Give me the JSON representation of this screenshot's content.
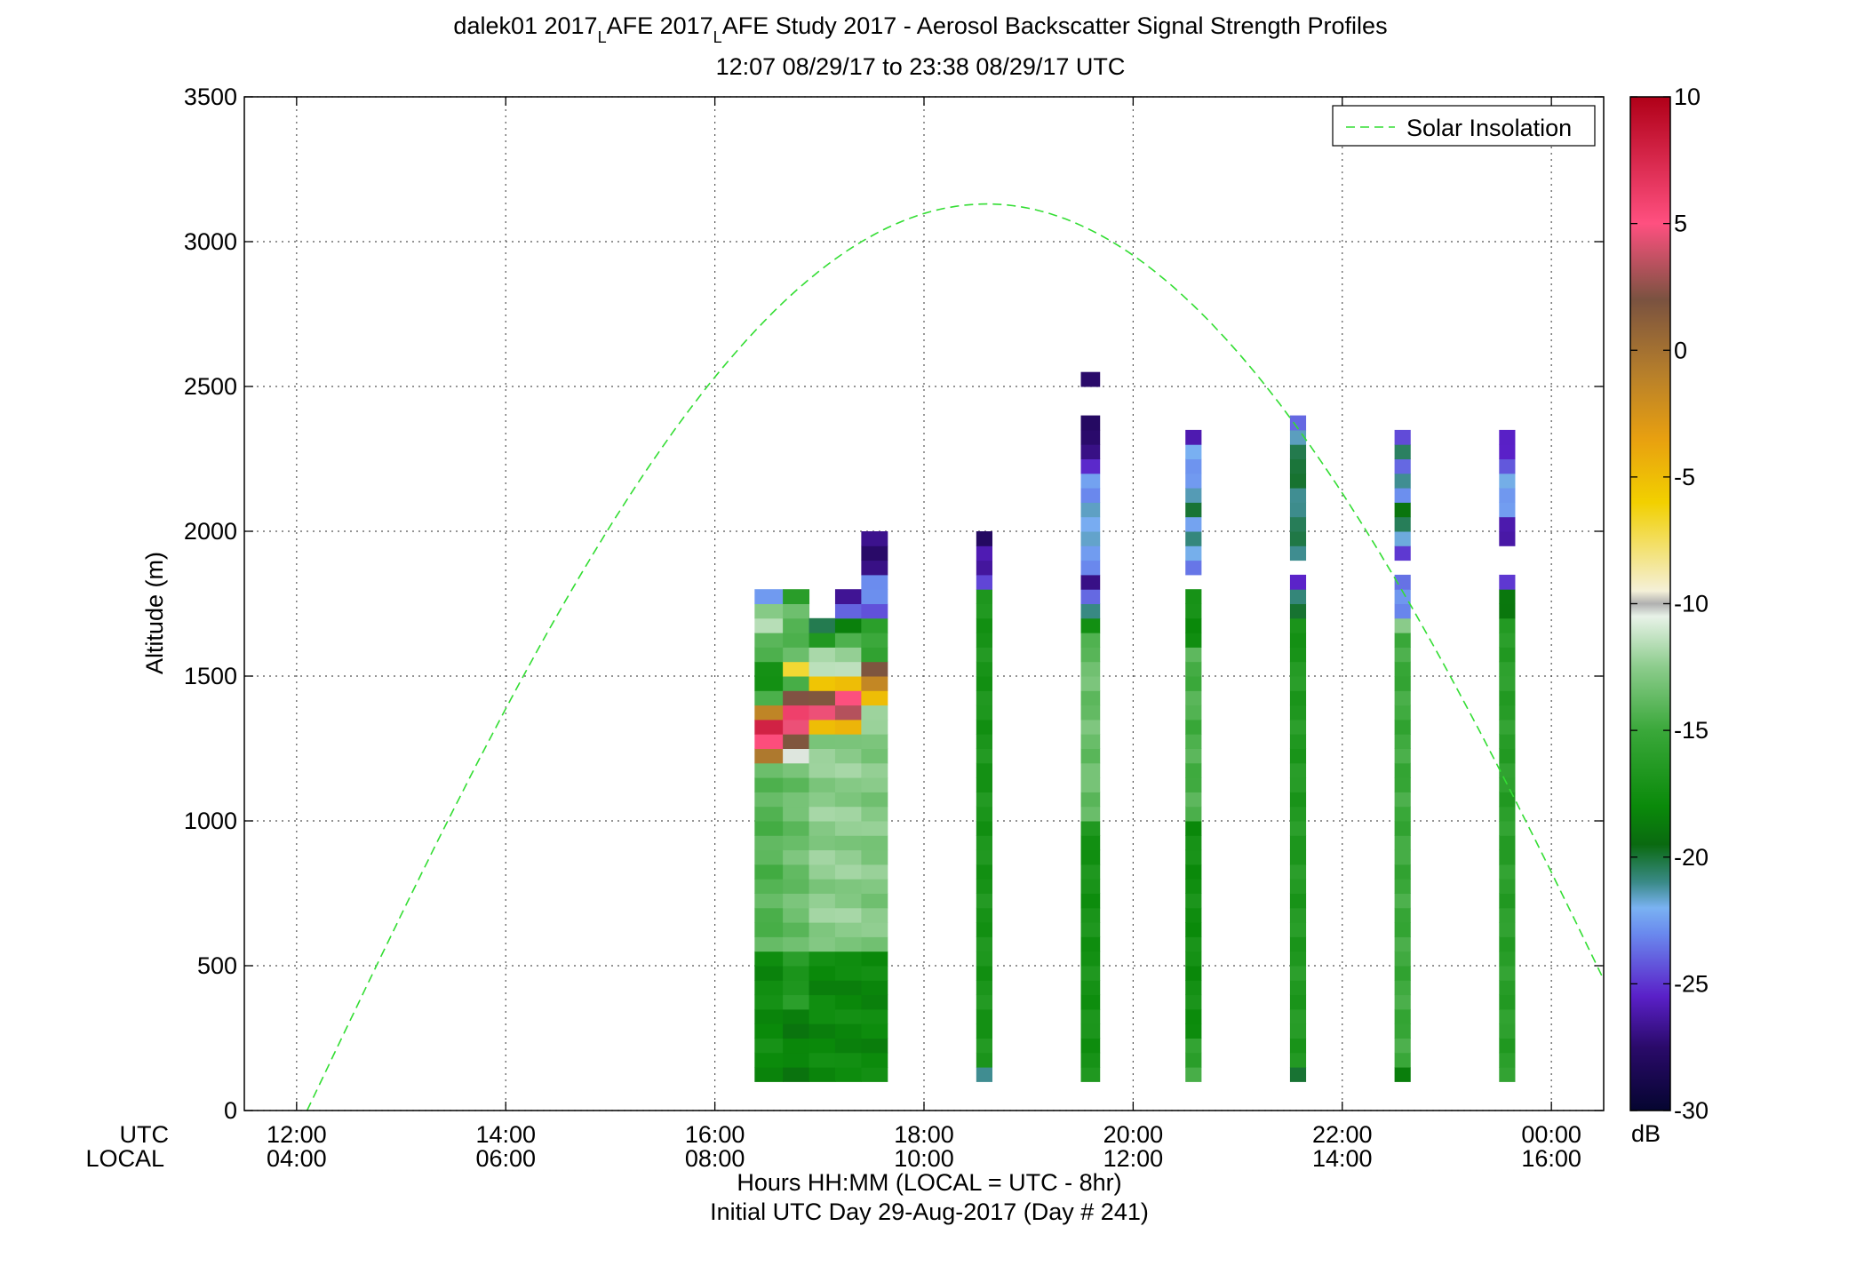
{
  "chart_data": {
    "type": "heatmap",
    "title": {
      "line1_prefix": "dalek01 2017",
      "sub1": "L",
      "line1_mid": "AFE 2017",
      "sub2": "L",
      "line1_suffix": "AFE Study 2017 - Aerosol Backscatter Signal Strength Profiles",
      "line2": "12:07 08/29/17 to 23:38 08/29/17  UTC"
    },
    "ylabel": "Altitude (m)",
    "ylim": [
      0,
      3500
    ],
    "yticks": [
      0,
      500,
      1000,
      1500,
      2000,
      2500,
      3000,
      3500
    ],
    "xlim_hours_utc": [
      11.5,
      24.5
    ],
    "xticks": [
      {
        "hour": 12,
        "utc": "12:00",
        "local": "04:00"
      },
      {
        "hour": 14,
        "utc": "14:00",
        "local": "06:00"
      },
      {
        "hour": 16,
        "utc": "16:00",
        "local": "08:00"
      },
      {
        "hour": 18,
        "utc": "18:00",
        "local": "10:00"
      },
      {
        "hour": 20,
        "utc": "20:00",
        "local": "12:00"
      },
      {
        "hour": 22,
        "utc": "22:00",
        "local": "14:00"
      },
      {
        "hour": 24,
        "utc": "00:00",
        "local": "16:00"
      }
    ],
    "row_label_utc": "UTC",
    "row_label_local": "LOCAL",
    "xlabel_line1": "Hours HH:MM  (LOCAL = UTC - 8hr)",
    "xlabel_line2": "Initial UTC Day 29-Aug-2017 (Day # 241)",
    "grid": true,
    "legend": {
      "entry": "Solar Insolation",
      "placement": "top-right",
      "line_color": "#33dd33",
      "line_style": "dashed"
    },
    "solar_insolation_curve": {
      "start_hour": 12.1,
      "end_hour": 24.5,
      "peak_hour": 18.6,
      "peak_altitude": 3130
    },
    "colorbar": {
      "unit": "dB",
      "range": [
        -30,
        10
      ],
      "ticks": [
        10,
        5,
        0,
        -5,
        -10,
        -15,
        -20,
        -25,
        -30
      ],
      "stops": [
        {
          "v": -30,
          "c": "#050530"
        },
        {
          "v": -27.5,
          "c": "#2a0a6a"
        },
        {
          "v": -25.5,
          "c": "#5a20c8"
        },
        {
          "v": -23,
          "c": "#6a8aee"
        },
        {
          "v": -22,
          "c": "#7ab2f2"
        },
        {
          "v": -21,
          "c": "#3a8a88"
        },
        {
          "v": -19.5,
          "c": "#0a6a10"
        },
        {
          "v": -18,
          "c": "#0a8a0a"
        },
        {
          "v": -15,
          "c": "#3aa83a"
        },
        {
          "v": -12.5,
          "c": "#8ccc8c"
        },
        {
          "v": -10.5,
          "c": "#e8f2e8"
        },
        {
          "v": -10,
          "c": "#b0b0b0"
        },
        {
          "v": -9.5,
          "c": "#f4f0d8"
        },
        {
          "v": -6,
          "c": "#f2d000"
        },
        {
          "v": -3.5,
          "c": "#e8a010"
        },
        {
          "v": -1,
          "c": "#b8802a"
        },
        {
          "v": 2,
          "c": "#7a5240"
        },
        {
          "v": 5,
          "c": "#ff5080"
        },
        {
          "v": 10,
          "c": "#b00018"
        }
      ]
    },
    "bin_height_m": 50,
    "profiles": [
      {
        "x0": 16.38,
        "x1": 16.65,
        "cells": [
          [
            100,
            550,
            -17.8
          ],
          [
            550,
            1150,
            -14.2
          ],
          [
            1150,
            1200,
            -13
          ],
          [
            1200,
            1250,
            -1
          ],
          [
            1250,
            1300,
            5
          ],
          [
            1300,
            1350,
            8.5
          ],
          [
            1350,
            1400,
            -1.5
          ],
          [
            1400,
            1450,
            -15
          ],
          [
            1450,
            1550,
            -17
          ],
          [
            1550,
            1600,
            -15
          ],
          [
            1600,
            1650,
            -14
          ],
          [
            1650,
            1700,
            -11
          ],
          [
            1700,
            1750,
            -13
          ],
          [
            1750,
            1800,
            -23
          ]
        ]
      },
      {
        "x0": 16.65,
        "x1": 16.9,
        "cells": [
          [
            100,
            350,
            -18.5
          ],
          [
            350,
            550,
            -16.5
          ],
          [
            550,
            1150,
            -13.5
          ],
          [
            1150,
            1200,
            -13
          ],
          [
            1200,
            1250,
            -11
          ],
          [
            1250,
            1300,
            2
          ],
          [
            1300,
            1350,
            5
          ],
          [
            1350,
            1400,
            5.5
          ],
          [
            1400,
            1450,
            2
          ],
          [
            1450,
            1500,
            -14
          ],
          [
            1500,
            1550,
            -7
          ],
          [
            1550,
            1700,
            -14
          ],
          [
            1700,
            1750,
            -14
          ],
          [
            1750,
            1800,
            -16
          ]
        ]
      },
      {
        "x0": 16.9,
        "x1": 17.15,
        "cells": [
          [
            100,
            550,
            -18
          ],
          [
            550,
            1300,
            -12.5
          ],
          [
            1300,
            1350,
            -5
          ],
          [
            1350,
            1400,
            4
          ],
          [
            1400,
            1450,
            2
          ],
          [
            1450,
            1500,
            -5
          ],
          [
            1500,
            1600,
            -12
          ],
          [
            1600,
            1650,
            -16
          ],
          [
            1650,
            1700,
            -20.5
          ]
        ]
      },
      {
        "x0": 17.15,
        "x1": 17.4,
        "cells": [
          [
            100,
            550,
            -18
          ],
          [
            550,
            1300,
            -12.5
          ],
          [
            1300,
            1350,
            -5
          ],
          [
            1350,
            1400,
            3
          ],
          [
            1400,
            1450,
            5.5
          ],
          [
            1450,
            1500,
            -5
          ],
          [
            1500,
            1600,
            -12
          ],
          [
            1600,
            1650,
            -14
          ],
          [
            1650,
            1700,
            -19
          ],
          [
            1700,
            1750,
            -24
          ],
          [
            1750,
            1800,
            -26
          ]
        ]
      },
      {
        "x0": 17.4,
        "x1": 17.65,
        "cells": [
          [
            100,
            550,
            -18
          ],
          [
            550,
            1350,
            -12.8
          ],
          [
            1350,
            1400,
            -12
          ],
          [
            1400,
            1450,
            -4.5
          ],
          [
            1450,
            1500,
            -2
          ],
          [
            1500,
            1550,
            1.5
          ],
          [
            1550,
            1650,
            -15
          ],
          [
            1650,
            1700,
            -16.5
          ],
          [
            1700,
            1750,
            -24
          ],
          [
            1750,
            1800,
            -22.5
          ],
          [
            1800,
            1850,
            -23.5
          ],
          [
            1850,
            2000,
            -27
          ]
        ]
      },
      {
        "x0": 18.5,
        "x1": 18.65,
        "cells": [
          [
            100,
            150,
            -20.5
          ],
          [
            150,
            1800,
            -17
          ],
          [
            1800,
            1850,
            -24
          ],
          [
            1850,
            1950,
            -26.5
          ],
          [
            1950,
            2000,
            -27.5
          ]
        ]
      },
      {
        "x0": 19.5,
        "x1": 19.68,
        "cells": [
          [
            100,
            1000,
            -17.2
          ],
          [
            1000,
            1600,
            -13.5
          ],
          [
            1600,
            1650,
            -14.5
          ],
          [
            1650,
            1700,
            -18
          ],
          [
            1700,
            1750,
            -20.5
          ],
          [
            1750,
            1800,
            -23.5
          ],
          [
            1800,
            1850,
            -27.5
          ],
          [
            1850,
            1900,
            -23
          ],
          [
            1900,
            2000,
            -22
          ],
          [
            2000,
            2050,
            -22.5
          ],
          [
            2050,
            2100,
            -21
          ],
          [
            2100,
            2200,
            -23
          ],
          [
            2200,
            2250,
            -25
          ],
          [
            2250,
            2300,
            -26.5
          ],
          [
            2300,
            2400,
            -28
          ],
          [
            2500,
            2550,
            -28
          ]
        ]
      },
      {
        "x0": 20.5,
        "x1": 20.65,
        "cells": [
          [
            100,
            150,
            -14
          ],
          [
            150,
            250,
            -16
          ],
          [
            250,
            1000,
            -17.5
          ],
          [
            1000,
            1600,
            -14.5
          ],
          [
            1600,
            1800,
            -17.5
          ],
          [
            1850,
            1900,
            -23.5
          ],
          [
            1900,
            1950,
            -22.5
          ],
          [
            1950,
            2000,
            -20.5
          ],
          [
            2000,
            2050,
            -22
          ],
          [
            2050,
            2100,
            -20.5
          ],
          [
            2100,
            2150,
            -21.5
          ],
          [
            2150,
            2200,
            -22
          ],
          [
            2200,
            2250,
            -23
          ],
          [
            2250,
            2300,
            -22.5
          ],
          [
            2300,
            2350,
            -25.5
          ]
        ]
      },
      {
        "x0": 21.5,
        "x1": 21.65,
        "cells": [
          [
            100,
            150,
            -20.5
          ],
          [
            150,
            1600,
            -16.5
          ],
          [
            1600,
            1700,
            -17.5
          ],
          [
            1700,
            1750,
            -19.5
          ],
          [
            1750,
            1800,
            -20.5
          ],
          [
            1800,
            1850,
            -26
          ],
          [
            1900,
            2000,
            -20.5
          ],
          [
            2000,
            2050,
            -20.8
          ],
          [
            2050,
            2100,
            -20.5
          ],
          [
            2100,
            2150,
            -21
          ],
          [
            2150,
            2200,
            -20.5
          ],
          [
            2200,
            2300,
            -19.8
          ],
          [
            2300,
            2350,
            -22
          ],
          [
            2350,
            2400,
            -24
          ]
        ]
      },
      {
        "x0": 22.5,
        "x1": 22.65,
        "cells": [
          [
            100,
            150,
            -18
          ],
          [
            150,
            1650,
            -15
          ],
          [
            1650,
            1700,
            -12
          ],
          [
            1700,
            1750,
            -23.5
          ],
          [
            1750,
            1850,
            -23
          ],
          [
            1900,
            1950,
            -25.5
          ],
          [
            1950,
            2000,
            -21.5
          ],
          [
            2000,
            2050,
            -20
          ],
          [
            2050,
            2100,
            -19.5
          ],
          [
            2100,
            2150,
            -23
          ],
          [
            2150,
            2200,
            -20.5
          ],
          [
            2200,
            2250,
            -24
          ],
          [
            2250,
            2300,
            -21
          ],
          [
            2300,
            2350,
            -24
          ]
        ]
      },
      {
        "x0": 23.5,
        "x1": 23.65,
        "cells": [
          [
            100,
            1650,
            -16
          ],
          [
            1650,
            1700,
            -17
          ],
          [
            1700,
            1800,
            -18.5
          ],
          [
            1800,
            1850,
            -25.5
          ],
          [
            1950,
            2050,
            -26.5
          ],
          [
            2050,
            2100,
            -22
          ],
          [
            2100,
            2200,
            -22.5
          ],
          [
            2200,
            2250,
            -24
          ],
          [
            2250,
            2300,
            -25
          ],
          [
            2300,
            2350,
            -26
          ]
        ]
      }
    ]
  }
}
